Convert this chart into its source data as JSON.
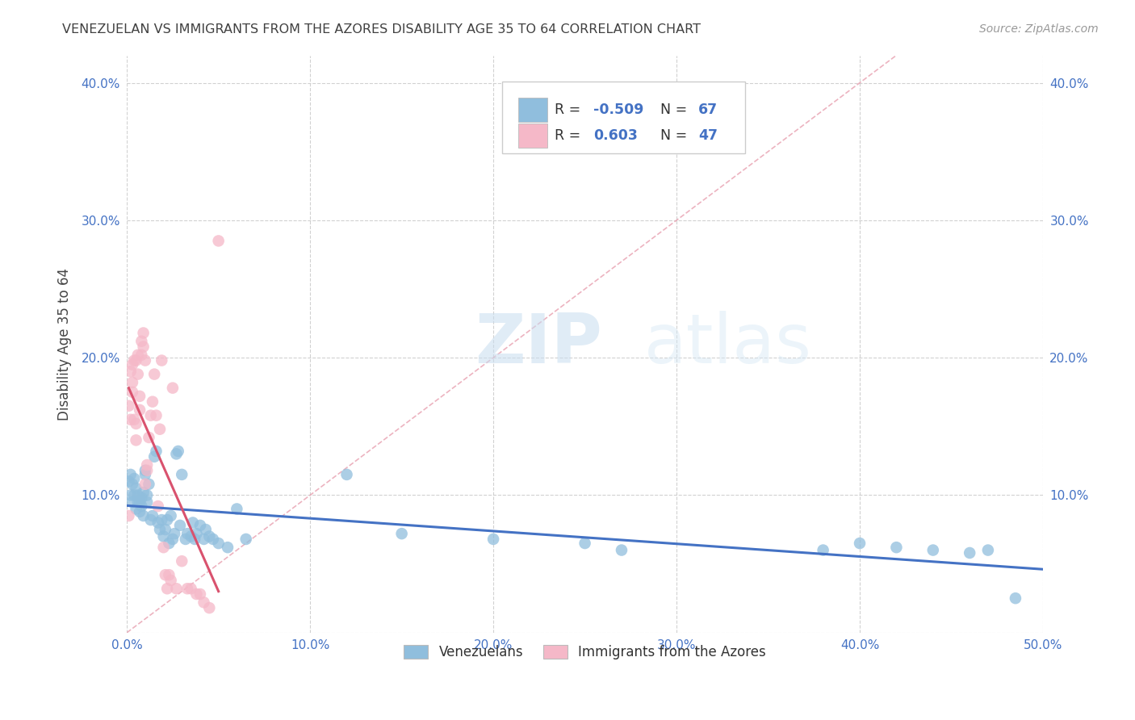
{
  "title": "VENEZUELAN VS IMMIGRANTS FROM THE AZORES DISABILITY AGE 35 TO 64 CORRELATION CHART",
  "source": "Source: ZipAtlas.com",
  "ylabel": "Disability Age 35 to 64",
  "xlim": [
    0.0,
    0.5
  ],
  "ylim": [
    0.0,
    0.42
  ],
  "xticks": [
    0.0,
    0.1,
    0.2,
    0.3,
    0.4,
    0.5
  ],
  "yticks": [
    0.0,
    0.1,
    0.2,
    0.3,
    0.4
  ],
  "xtick_labels": [
    "0.0%",
    "10.0%",
    "20.0%",
    "30.0%",
    "40.0%",
    "50.0%"
  ],
  "ytick_labels": [
    "",
    "10.0%",
    "20.0%",
    "30.0%",
    "40.0%"
  ],
  "right_ytick_labels": [
    "10.0%",
    "20.0%",
    "30.0%",
    "40.0%"
  ],
  "grid_color": "#cccccc",
  "background_color": "#ffffff",
  "blue_color": "#90bedd",
  "pink_color": "#f5b8c8",
  "blue_line_color": "#4472c4",
  "pink_line_color": "#d9526e",
  "diagonal_color": "#f0b8c8",
  "R_blue": -0.509,
  "N_blue": 67,
  "R_pink": 0.603,
  "N_pink": 47,
  "legend_label_blue": "Venezuelans",
  "legend_label_pink": "Immigrants from the Azores",
  "title_color": "#404040",
  "source_color": "#999999",
  "blue_scatter_x": [
    0.001,
    0.002,
    0.002,
    0.003,
    0.003,
    0.004,
    0.004,
    0.005,
    0.005,
    0.006,
    0.006,
    0.007,
    0.007,
    0.008,
    0.008,
    0.009,
    0.009,
    0.01,
    0.01,
    0.011,
    0.011,
    0.012,
    0.013,
    0.014,
    0.015,
    0.016,
    0.017,
    0.018,
    0.019,
    0.02,
    0.021,
    0.022,
    0.023,
    0.024,
    0.025,
    0.026,
    0.027,
    0.028,
    0.029,
    0.03,
    0.032,
    0.033,
    0.035,
    0.036,
    0.037,
    0.038,
    0.04,
    0.042,
    0.043,
    0.045,
    0.047,
    0.05,
    0.055,
    0.06,
    0.065,
    0.12,
    0.15,
    0.2,
    0.25,
    0.27,
    0.38,
    0.4,
    0.42,
    0.44,
    0.46,
    0.47,
    0.485
  ],
  "blue_scatter_y": [
    0.11,
    0.115,
    0.1,
    0.095,
    0.108,
    0.1,
    0.112,
    0.09,
    0.105,
    0.095,
    0.1,
    0.088,
    0.095,
    0.092,
    0.098,
    0.085,
    0.102,
    0.115,
    0.118,
    0.095,
    0.1,
    0.108,
    0.082,
    0.085,
    0.128,
    0.132,
    0.08,
    0.075,
    0.082,
    0.07,
    0.075,
    0.082,
    0.065,
    0.085,
    0.068,
    0.072,
    0.13,
    0.132,
    0.078,
    0.115,
    0.068,
    0.072,
    0.07,
    0.08,
    0.068,
    0.072,
    0.078,
    0.068,
    0.075,
    0.07,
    0.068,
    0.065,
    0.062,
    0.09,
    0.068,
    0.115,
    0.072,
    0.068,
    0.065,
    0.06,
    0.06,
    0.065,
    0.062,
    0.06,
    0.058,
    0.06,
    0.025
  ],
  "pink_scatter_x": [
    0.001,
    0.001,
    0.002,
    0.002,
    0.003,
    0.003,
    0.003,
    0.004,
    0.004,
    0.005,
    0.005,
    0.005,
    0.006,
    0.006,
    0.007,
    0.007,
    0.008,
    0.008,
    0.009,
    0.009,
    0.01,
    0.01,
    0.011,
    0.011,
    0.012,
    0.013,
    0.014,
    0.015,
    0.016,
    0.017,
    0.018,
    0.019,
    0.02,
    0.021,
    0.022,
    0.023,
    0.024,
    0.025,
    0.027,
    0.03,
    0.033,
    0.035,
    0.038,
    0.04,
    0.042,
    0.045,
    0.05
  ],
  "pink_scatter_y": [
    0.085,
    0.165,
    0.155,
    0.19,
    0.175,
    0.182,
    0.195,
    0.198,
    0.155,
    0.14,
    0.152,
    0.198,
    0.202,
    0.188,
    0.172,
    0.162,
    0.212,
    0.202,
    0.218,
    0.208,
    0.108,
    0.198,
    0.122,
    0.118,
    0.142,
    0.158,
    0.168,
    0.188,
    0.158,
    0.092,
    0.148,
    0.198,
    0.062,
    0.042,
    0.032,
    0.042,
    0.038,
    0.178,
    0.032,
    0.052,
    0.032,
    0.032,
    0.028,
    0.028,
    0.022,
    0.018,
    0.285
  ]
}
